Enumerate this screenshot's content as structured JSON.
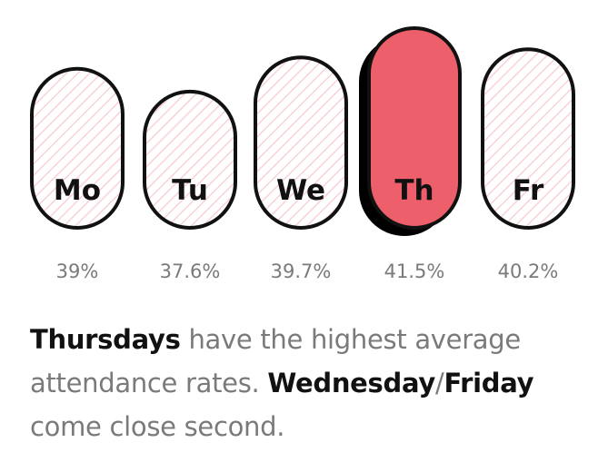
{
  "chart_data": {
    "type": "bar",
    "categories": [
      "Mo",
      "Tu",
      "We",
      "Th",
      "Fr"
    ],
    "values": [
      39,
      37.6,
      39.7,
      41.5,
      40.2
    ],
    "value_labels": [
      "39%",
      "37.6%",
      "39.7%",
      "41.5%",
      "40.2%"
    ],
    "highlight": "Th",
    "unit": "%",
    "title": "",
    "xlabel": "",
    "ylabel": "",
    "grid": false,
    "legend": "none"
  },
  "caption": {
    "part1_bold": "Thursdays",
    "part2": " have the highest average attendance rates. ",
    "part3_bold": "Wednesday",
    "part4": "/",
    "part5_bold": "Friday",
    "part6": " come close second."
  },
  "colors": {
    "highlight_fill": "#ee5f6c",
    "stripe": "#f8d2d6",
    "outline": "#111111",
    "shadow": "#000000",
    "value_text": "#7a7a7a",
    "body_text": "#7a7a7a",
    "emphasis_text": "#111111"
  }
}
